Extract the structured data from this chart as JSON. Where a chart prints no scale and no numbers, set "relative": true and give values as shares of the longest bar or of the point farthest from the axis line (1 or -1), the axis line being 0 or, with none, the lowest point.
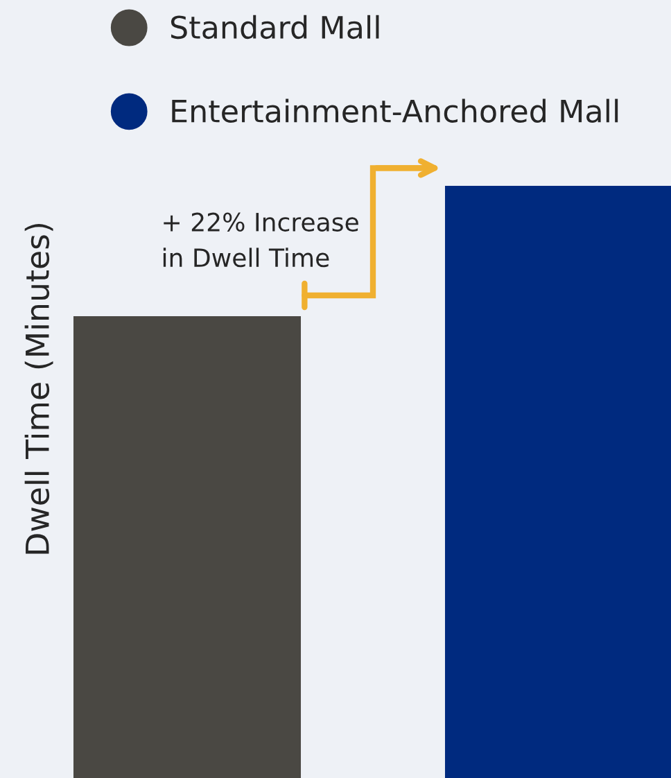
{
  "chart_data": {
    "type": "bar",
    "relative": true,
    "ylabel": "Dwell Time (Minutes)",
    "categories": [
      null,
      null
    ],
    "series": [
      {
        "name": "Standard Mall",
        "color": "#4a4843",
        "values": [
          0.78,
          null
        ]
      },
      {
        "name": "Entertainment-Anchored Mall",
        "color": "#002a7f",
        "values": [
          null,
          1
        ]
      }
    ],
    "annotations": [
      "+ 22% Increase\nin Dwell Time"
    ],
    "stacked": true,
    "legend": "top left",
    "grid": false
  }
}
